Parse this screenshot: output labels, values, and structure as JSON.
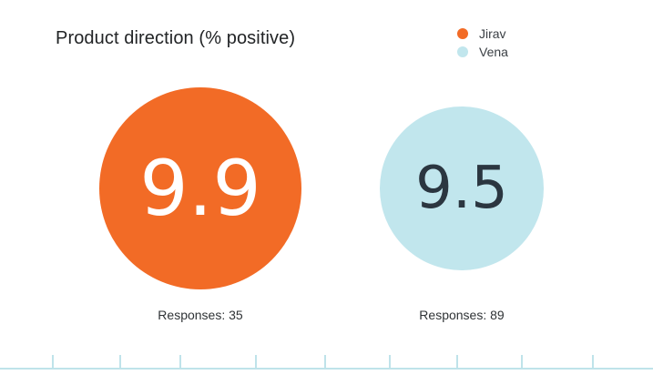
{
  "chart_data": {
    "type": "bubble",
    "title": "Product direction (% positive)",
    "legend_position": "top-right",
    "series": [
      {
        "name": "Jirav",
        "value": 9.9,
        "value_label": "9.9",
        "responses": 35,
        "responses_label": "Responses: 35",
        "color": "#f26b26",
        "text_color": "#ffffff"
      },
      {
        "name": "Vena",
        "value": 9.5,
        "value_label": "9.5",
        "responses": 89,
        "responses_label": "Responses: 89",
        "color": "#c1e6ed",
        "text_color": "#2b3640"
      }
    ],
    "axis_color": "#bfe3ea"
  }
}
